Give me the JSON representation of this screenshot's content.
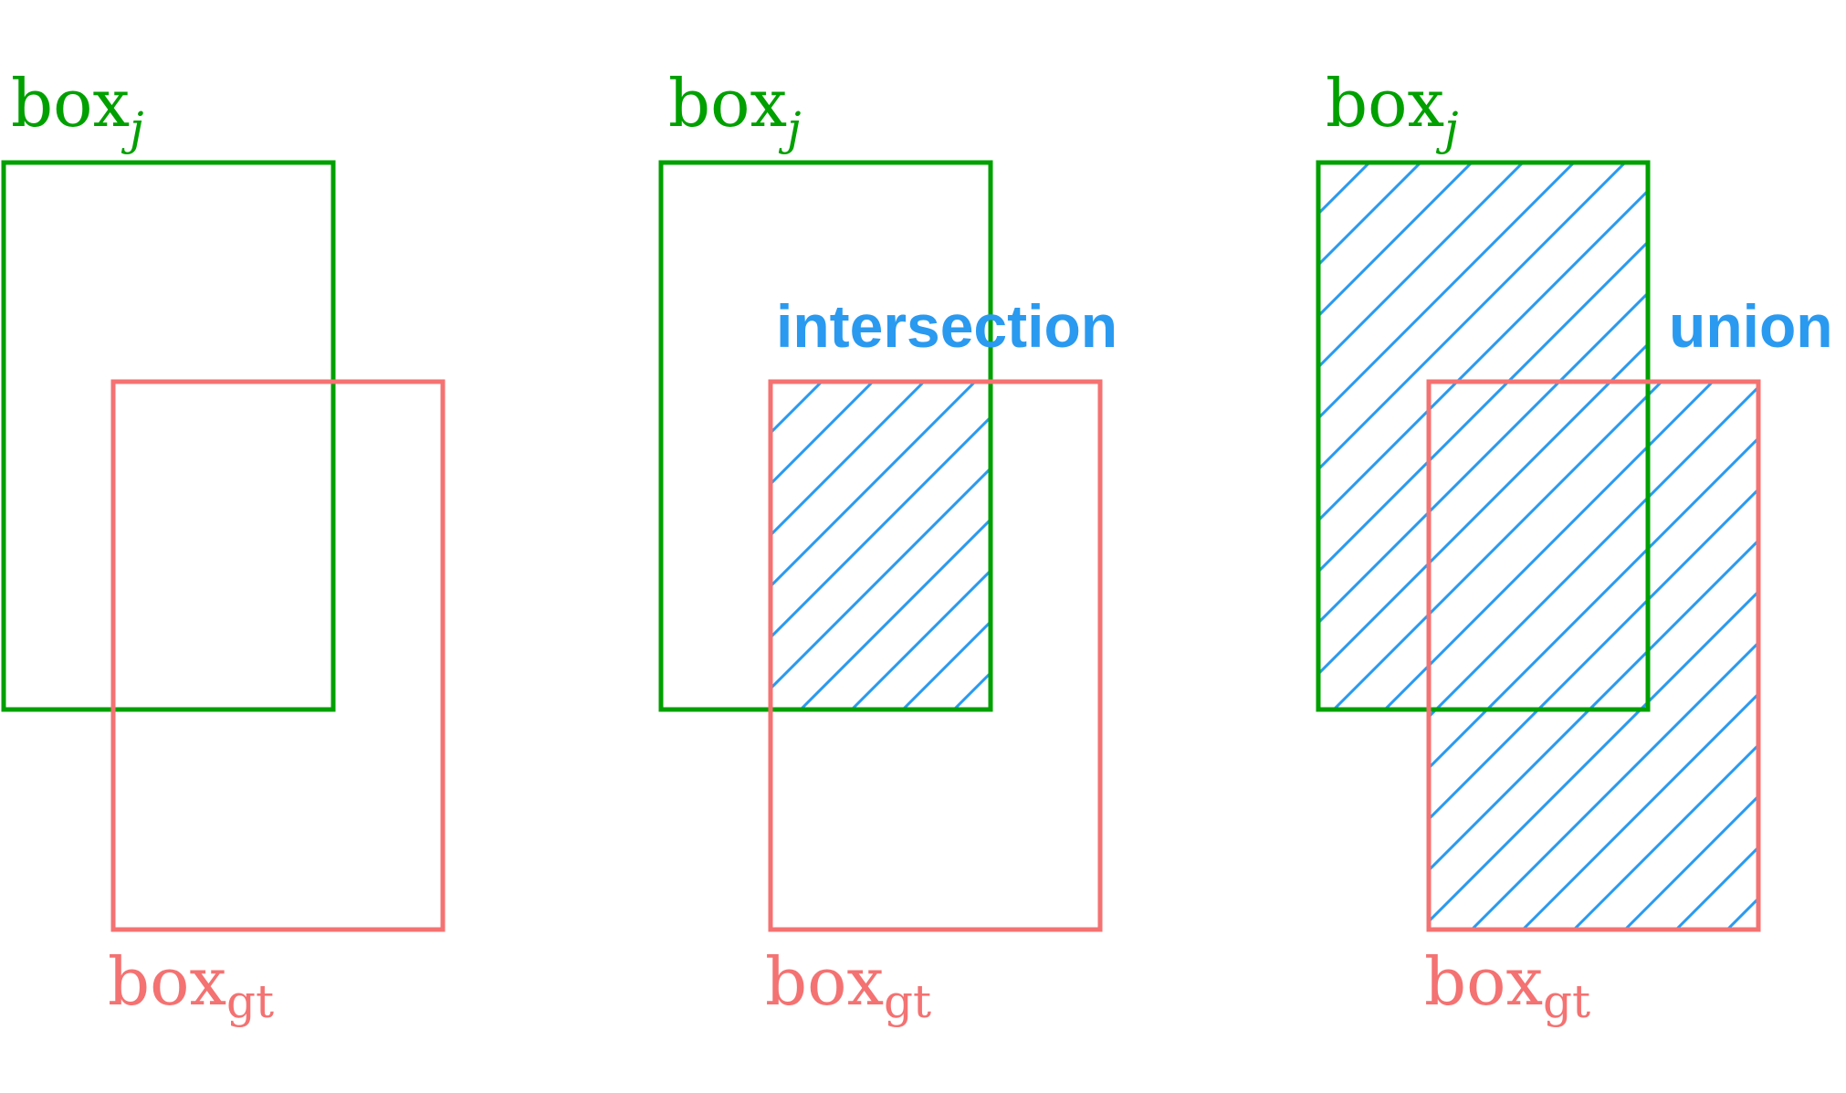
{
  "colors": {
    "box_j": "#00a000",
    "box_gt": "#f47272",
    "hatch": "#2a9af0",
    "background": "#ffffff"
  },
  "labels": {
    "box_base": "box",
    "box_j_subscript": "j",
    "box_gt_subscript": "gt",
    "intersection": "intersection",
    "union": "union"
  },
  "panels": [
    {
      "id": "plain",
      "hatch": "none"
    },
    {
      "id": "intersection",
      "hatch": "intersection",
      "caption": "intersection"
    },
    {
      "id": "union",
      "hatch": "union",
      "caption": "union"
    }
  ]
}
